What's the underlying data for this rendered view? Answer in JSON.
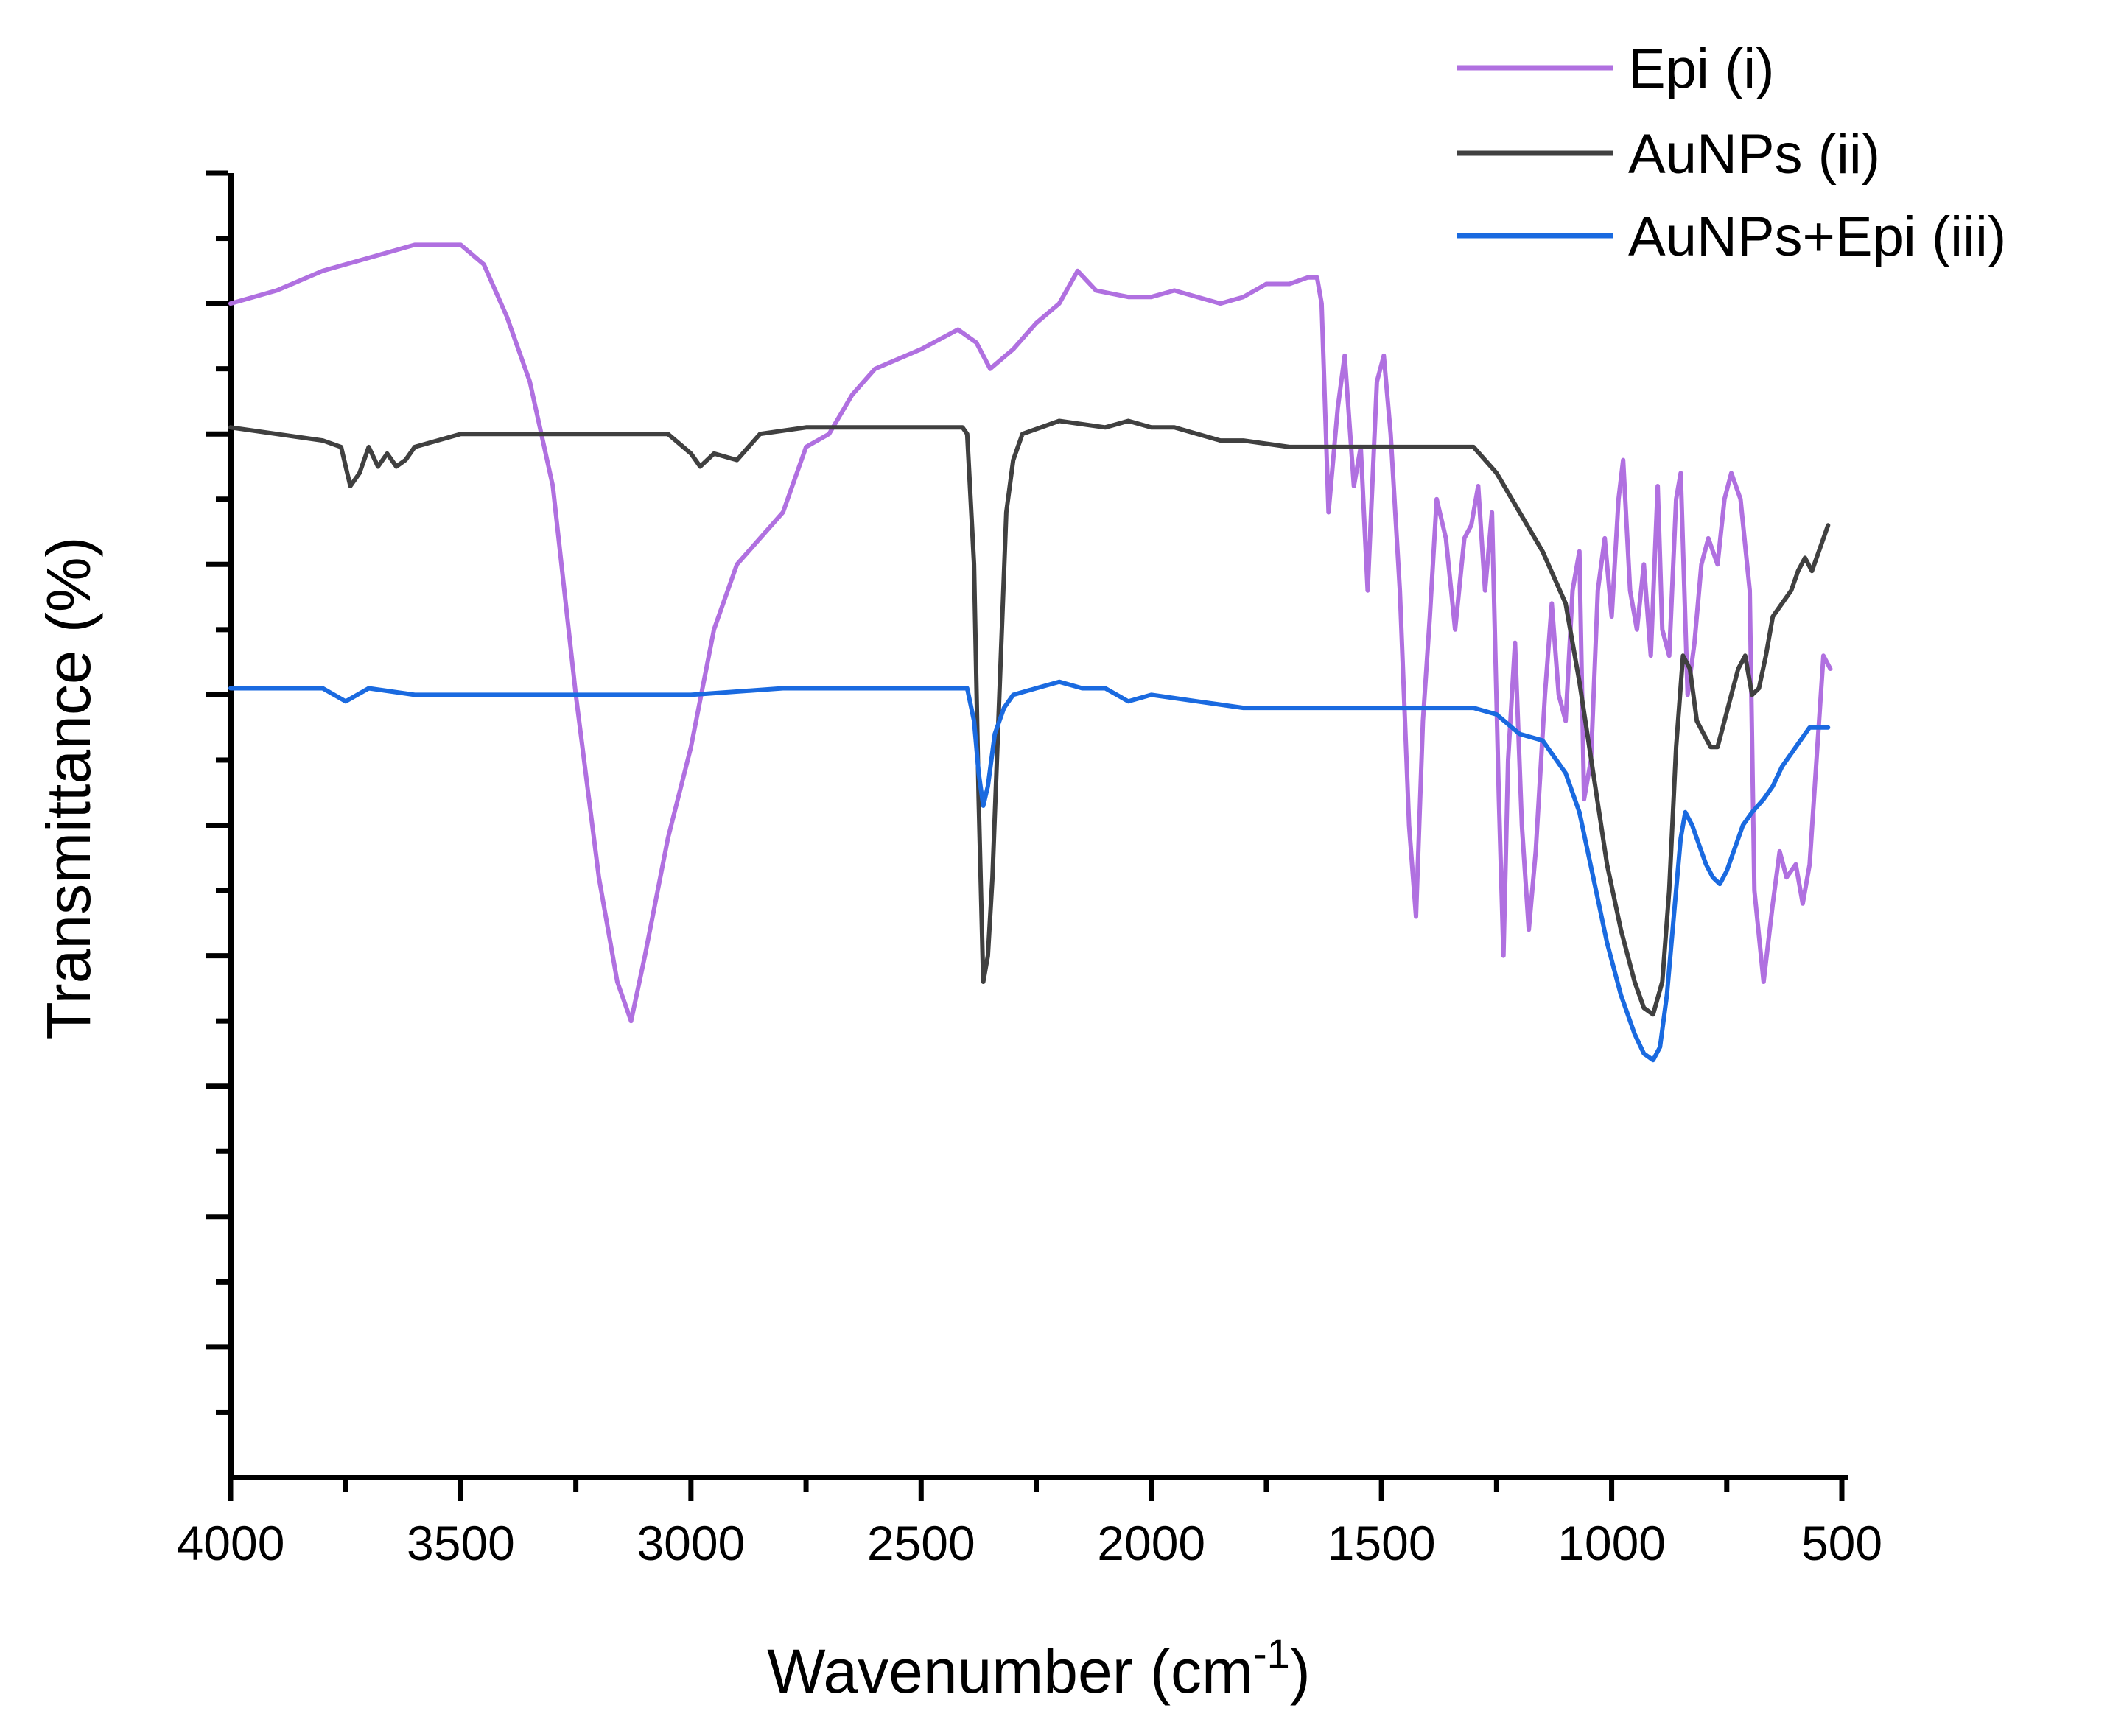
{
  "chart_data": {
    "type": "line",
    "title": "",
    "xlabel": "Wavenumber (cm",
    "xlabel_sup": "-1",
    "xlabel_close": ")",
    "ylabel": "Transmittance (%)",
    "xlim": [
      4000,
      500
    ],
    "ylim": [
      0,
      100
    ],
    "xticks": [
      4000,
      3500,
      3000,
      2500,
      2000,
      1500,
      1000,
      500
    ],
    "xtick_labels": [
      "4000",
      "3500",
      "3000",
      "2500",
      "2000",
      "1500",
      "1000",
      "500"
    ],
    "yticks_unlabeled": true,
    "grid": false,
    "legend_position": "top-right",
    "series": [
      {
        "name": "Epi (i)",
        "color": "#b070e0",
        "points": [
          [
            4000,
            90.0
          ],
          [
            3900,
            91.0
          ],
          [
            3800,
            92.5
          ],
          [
            3700,
            93.5
          ],
          [
            3600,
            94.5
          ],
          [
            3500,
            94.5
          ],
          [
            3450,
            93.0
          ],
          [
            3400,
            89.0
          ],
          [
            3350,
            84.0
          ],
          [
            3300,
            76.0
          ],
          [
            3250,
            60.0
          ],
          [
            3200,
            46.0
          ],
          [
            3160,
            38.0
          ],
          [
            3130,
            35.0
          ],
          [
            3100,
            40.0
          ],
          [
            3050,
            49.0
          ],
          [
            3000,
            56.0
          ],
          [
            2950,
            65.0
          ],
          [
            2900,
            70.0
          ],
          [
            2850,
            72.0
          ],
          [
            2800,
            74.0
          ],
          [
            2750,
            79.0
          ],
          [
            2700,
            80.0
          ],
          [
            2650,
            83.0
          ],
          [
            2600,
            85.0
          ],
          [
            2500,
            86.5
          ],
          [
            2420,
            88.0
          ],
          [
            2380,
            87.0
          ],
          [
            2350,
            85.0
          ],
          [
            2300,
            86.5
          ],
          [
            2250,
            88.5
          ],
          [
            2200,
            90.0
          ],
          [
            2160,
            92.5
          ],
          [
            2120,
            91.0
          ],
          [
            2050,
            90.5
          ],
          [
            2000,
            90.5
          ],
          [
            1950,
            91.0
          ],
          [
            1900,
            90.5
          ],
          [
            1850,
            90.0
          ],
          [
            1800,
            90.5
          ],
          [
            1750,
            91.5
          ],
          [
            1700,
            91.5
          ],
          [
            1660,
            92.0
          ],
          [
            1640,
            92.0
          ],
          [
            1630,
            90.0
          ],
          [
            1615,
            74.0
          ],
          [
            1595,
            82.0
          ],
          [
            1580,
            86.0
          ],
          [
            1560,
            76.0
          ],
          [
            1545,
            79.0
          ],
          [
            1530,
            68.0
          ],
          [
            1510,
            84.0
          ],
          [
            1495,
            86.0
          ],
          [
            1480,
            80.0
          ],
          [
            1460,
            68.0
          ],
          [
            1440,
            50.0
          ],
          [
            1425,
            43.0
          ],
          [
            1410,
            58.0
          ],
          [
            1395,
            66.0
          ],
          [
            1380,
            75.0
          ],
          [
            1360,
            72.0
          ],
          [
            1340,
            65.0
          ],
          [
            1320,
            72.0
          ],
          [
            1305,
            73.0
          ],
          [
            1290,
            76.0
          ],
          [
            1275,
            68.0
          ],
          [
            1260,
            74.0
          ],
          [
            1245,
            52.0
          ],
          [
            1235,
            40.0
          ],
          [
            1225,
            55.0
          ],
          [
            1210,
            64.0
          ],
          [
            1195,
            50.0
          ],
          [
            1180,
            42.0
          ],
          [
            1165,
            48.0
          ],
          [
            1145,
            60.0
          ],
          [
            1130,
            67.0
          ],
          [
            1115,
            60.0
          ],
          [
            1100,
            58.0
          ],
          [
            1085,
            68.0
          ],
          [
            1070,
            71.0
          ],
          [
            1060,
            52.0
          ],
          [
            1045,
            55.0
          ],
          [
            1030,
            68.0
          ],
          [
            1015,
            72.0
          ],
          [
            1000,
            66.0
          ],
          [
            985,
            75.0
          ],
          [
            975,
            78.0
          ],
          [
            960,
            68.0
          ],
          [
            945,
            65.0
          ],
          [
            930,
            70.0
          ],
          [
            915,
            63.0
          ],
          [
            900,
            76.0
          ],
          [
            890,
            65.0
          ],
          [
            875,
            63.0
          ],
          [
            860,
            75.0
          ],
          [
            850,
            77.0
          ],
          [
            835,
            60.0
          ],
          [
            820,
            64.0
          ],
          [
            805,
            70.0
          ],
          [
            790,
            72.0
          ],
          [
            770,
            70.0
          ],
          [
            755,
            75.0
          ],
          [
            740,
            77.0
          ],
          [
            720,
            75.0
          ],
          [
            700,
            68.0
          ],
          [
            690,
            45.0
          ],
          [
            670,
            38.0
          ],
          [
            650,
            44.0
          ],
          [
            635,
            48.0
          ],
          [
            620,
            46.0
          ],
          [
            600,
            47.0
          ],
          [
            585,
            44.0
          ],
          [
            570,
            47.0
          ],
          [
            555,
            55.0
          ],
          [
            540,
            63.0
          ],
          [
            525,
            62.0
          ]
        ]
      },
      {
        "name": "AuNPs (ii)",
        "color": "#404040",
        "points": [
          [
            4000,
            80.5
          ],
          [
            3900,
            80.0
          ],
          [
            3800,
            79.5
          ],
          [
            3760,
            79.0
          ],
          [
            3740,
            76.0
          ],
          [
            3720,
            77.0
          ],
          [
            3700,
            79.0
          ],
          [
            3680,
            77.5
          ],
          [
            3660,
            78.5
          ],
          [
            3640,
            77.5
          ],
          [
            3620,
            78.0
          ],
          [
            3600,
            79.0
          ],
          [
            3500,
            80.0
          ],
          [
            3400,
            80.0
          ],
          [
            3200,
            80.0
          ],
          [
            3050,
            80.0
          ],
          [
            3000,
            78.5
          ],
          [
            2980,
            77.5
          ],
          [
            2950,
            78.5
          ],
          [
            2900,
            78.0
          ],
          [
            2850,
            80.0
          ],
          [
            2750,
            80.5
          ],
          [
            2600,
            80.5
          ],
          [
            2500,
            80.5
          ],
          [
            2410,
            80.5
          ],
          [
            2400,
            80.0
          ],
          [
            2385,
            70.0
          ],
          [
            2375,
            52.0
          ],
          [
            2365,
            38.0
          ],
          [
            2355,
            40.0
          ],
          [
            2345,
            46.0
          ],
          [
            2330,
            60.0
          ],
          [
            2315,
            74.0
          ],
          [
            2300,
            78.0
          ],
          [
            2280,
            80.0
          ],
          [
            2200,
            81.0
          ],
          [
            2100,
            80.5
          ],
          [
            2050,
            81.0
          ],
          [
            2000,
            80.5
          ],
          [
            1950,
            80.5
          ],
          [
            1850,
            79.5
          ],
          [
            1800,
            79.5
          ],
          [
            1700,
            79.0
          ],
          [
            1600,
            79.0
          ],
          [
            1500,
            79.0
          ],
          [
            1400,
            79.0
          ],
          [
            1300,
            79.0
          ],
          [
            1250,
            77.0
          ],
          [
            1200,
            74.0
          ],
          [
            1150,
            71.0
          ],
          [
            1100,
            67.0
          ],
          [
            1070,
            61.0
          ],
          [
            1040,
            54.0
          ],
          [
            1010,
            47.0
          ],
          [
            980,
            42.0
          ],
          [
            950,
            38.0
          ],
          [
            930,
            36.0
          ],
          [
            910,
            35.5
          ],
          [
            890,
            38.0
          ],
          [
            875,
            45.0
          ],
          [
            860,
            56.0
          ],
          [
            845,
            63.0
          ],
          [
            830,
            62.0
          ],
          [
            815,
            58.0
          ],
          [
            800,
            57.0
          ],
          [
            785,
            56.0
          ],
          [
            770,
            56.0
          ],
          [
            755,
            58.0
          ],
          [
            740,
            60.0
          ],
          [
            725,
            62.0
          ],
          [
            710,
            63.0
          ],
          [
            695,
            60.0
          ],
          [
            680,
            60.5
          ],
          [
            665,
            63.0
          ],
          [
            650,
            66.0
          ],
          [
            630,
            67.0
          ],
          [
            610,
            68.0
          ],
          [
            595,
            69.5
          ],
          [
            580,
            70.5
          ],
          [
            565,
            69.5
          ],
          [
            550,
            71.0
          ],
          [
            530,
            73.0
          ]
        ]
      },
      {
        "name": "AuNPs+Epi (iii)",
        "color": "#1a6ae0",
        "points": [
          [
            4000,
            60.5
          ],
          [
            3900,
            60.5
          ],
          [
            3800,
            60.5
          ],
          [
            3750,
            59.5
          ],
          [
            3700,
            60.5
          ],
          [
            3600,
            60.0
          ],
          [
            3400,
            60.0
          ],
          [
            3200,
            60.0
          ],
          [
            3000,
            60.0
          ],
          [
            2800,
            60.5
          ],
          [
            2600,
            60.5
          ],
          [
            2500,
            60.5
          ],
          [
            2410,
            60.5
          ],
          [
            2400,
            60.5
          ],
          [
            2385,
            58.0
          ],
          [
            2375,
            54.0
          ],
          [
            2365,
            51.5
          ],
          [
            2355,
            53.0
          ],
          [
            2340,
            57.0
          ],
          [
            2320,
            59.0
          ],
          [
            2300,
            60.0
          ],
          [
            2250,
            60.5
          ],
          [
            2200,
            61.0
          ],
          [
            2150,
            60.5
          ],
          [
            2100,
            60.5
          ],
          [
            2050,
            59.5
          ],
          [
            2000,
            60.0
          ],
          [
            1900,
            59.5
          ],
          [
            1800,
            59.0
          ],
          [
            1700,
            59.0
          ],
          [
            1600,
            59.0
          ],
          [
            1500,
            59.0
          ],
          [
            1400,
            59.0
          ],
          [
            1300,
            59.0
          ],
          [
            1250,
            58.5
          ],
          [
            1200,
            57.0
          ],
          [
            1150,
            56.5
          ],
          [
            1100,
            54.0
          ],
          [
            1070,
            51.0
          ],
          [
            1040,
            46.0
          ],
          [
            1010,
            41.0
          ],
          [
            980,
            37.0
          ],
          [
            950,
            34.0
          ],
          [
            930,
            32.5
          ],
          [
            910,
            32.0
          ],
          [
            895,
            33.0
          ],
          [
            880,
            37.0
          ],
          [
            865,
            43.0
          ],
          [
            850,
            49.0
          ],
          [
            840,
            51.0
          ],
          [
            825,
            50.0
          ],
          [
            810,
            48.5
          ],
          [
            795,
            47.0
          ],
          [
            780,
            46.0
          ],
          [
            765,
            45.5
          ],
          [
            750,
            46.5
          ],
          [
            735,
            48.0
          ],
          [
            715,
            50.0
          ],
          [
            695,
            51.0
          ],
          [
            670,
            52.0
          ],
          [
            650,
            53.0
          ],
          [
            630,
            54.5
          ],
          [
            610,
            55.5
          ],
          [
            590,
            56.5
          ],
          [
            570,
            57.5
          ],
          [
            550,
            57.5
          ],
          [
            530,
            57.5
          ]
        ]
      }
    ]
  }
}
